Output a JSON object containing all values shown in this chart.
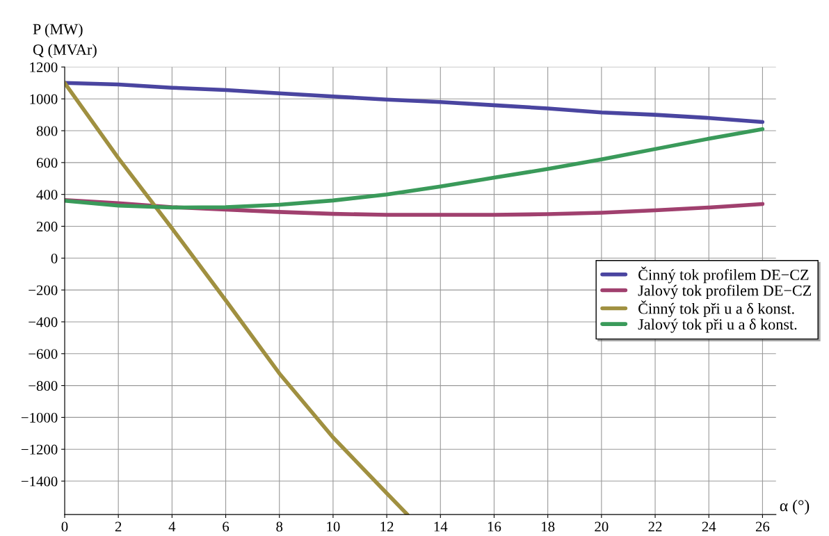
{
  "chart_data": {
    "type": "line",
    "ylabel": "P (MW)\nQ (MVAr)",
    "xlabel": "α (°)",
    "xlim": [
      0,
      26.5
    ],
    "ylim": [
      -1610,
      1200
    ],
    "xticks": [
      0,
      2,
      4,
      6,
      8,
      10,
      12,
      14,
      16,
      18,
      20,
      22,
      24,
      26
    ],
    "yticks": [
      -1400,
      -1200,
      -1000,
      -800,
      -600,
      -400,
      -200,
      0,
      200,
      400,
      600,
      800,
      1000,
      1200
    ],
    "grid": true,
    "legend": "right",
    "marker": "none",
    "line_style": "solid",
    "series": [
      {
        "name": "Činný tok profilem DE−CZ",
        "color": "#4a45a0",
        "x": [
          0,
          2,
          4,
          6,
          8,
          10,
          12,
          14,
          16,
          18,
          20,
          22,
          24,
          26
        ],
        "values": [
          1100,
          1090,
          1070,
          1055,
          1035,
          1015,
          995,
          980,
          960,
          940,
          915,
          900,
          880,
          855
        ]
      },
      {
        "name": "Jalový tok profilem DE−CZ",
        "color": "#a0406e",
        "x": [
          0,
          2,
          4,
          6,
          8,
          10,
          12,
          14,
          16,
          18,
          20,
          22,
          24,
          26
        ],
        "values": [
          365,
          345,
          320,
          305,
          290,
          278,
          272,
          272,
          272,
          276,
          285,
          300,
          318,
          340
        ]
      },
      {
        "name": "Činný tok při u a δ konst.",
        "color": "#a09040",
        "x": [
          0,
          2,
          4,
          6,
          8,
          10,
          12,
          12.77
        ],
        "values": [
          1100,
          628,
          187,
          -265,
          -724,
          -1126,
          -1476,
          -1610
        ]
      },
      {
        "name": "Jalový tok při u a δ konst.",
        "color": "#3a9a5a",
        "x": [
          0,
          2,
          4,
          6,
          8,
          10,
          12,
          14,
          16,
          18,
          20,
          22,
          24,
          26
        ],
        "values": [
          360,
          330,
          318,
          320,
          335,
          362,
          400,
          450,
          505,
          560,
          620,
          685,
          750,
          810
        ]
      }
    ]
  }
}
